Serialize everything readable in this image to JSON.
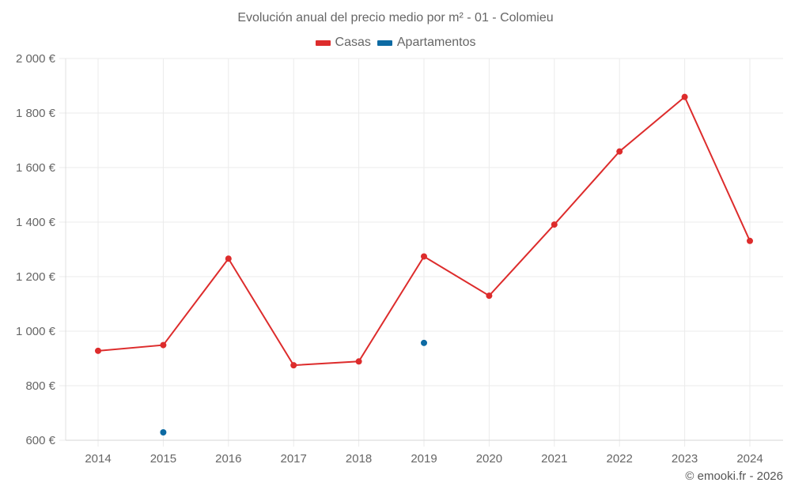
{
  "chart_data": {
    "type": "line",
    "title": "Evolución anual del precio medio por m² - 01 - Colomieu",
    "xlabel": "",
    "ylabel": "",
    "categories": [
      "2014",
      "2015",
      "2016",
      "2017",
      "2018",
      "2019",
      "2020",
      "2021",
      "2022",
      "2023",
      "2024"
    ],
    "series": [
      {
        "name": "Casas",
        "color": "#dd2c2c",
        "values": [
          928,
          949,
          1266,
          875,
          889,
          1274,
          1130,
          1391,
          1659,
          1859,
          1331
        ]
      },
      {
        "name": "Apartamentos",
        "color": "#0d6aa3",
        "values": [
          null,
          629,
          null,
          null,
          null,
          957,
          null,
          null,
          null,
          null,
          null
        ]
      }
    ],
    "ylim": [
      600,
      2000
    ],
    "yticks": [
      600,
      800,
      1000,
      1200,
      1400,
      1600,
      1800,
      2000
    ],
    "ytick_labels": [
      "600 €",
      "800 €",
      "1 000 €",
      "1 200 €",
      "1 400 €",
      "1 600 €",
      "1 800 €",
      "2 000 €"
    ],
    "grid": true,
    "legend_position": "top"
  },
  "header": {
    "title": "Evolución anual del precio medio por m² - 01 - Colomieu"
  },
  "legend": {
    "items": [
      {
        "label": "Casas",
        "color": "#dd2c2c"
      },
      {
        "label": "Apartamentos",
        "color": "#0d6aa3"
      }
    ]
  },
  "footer": {
    "credit": "© emooki.fr - 2026"
  }
}
